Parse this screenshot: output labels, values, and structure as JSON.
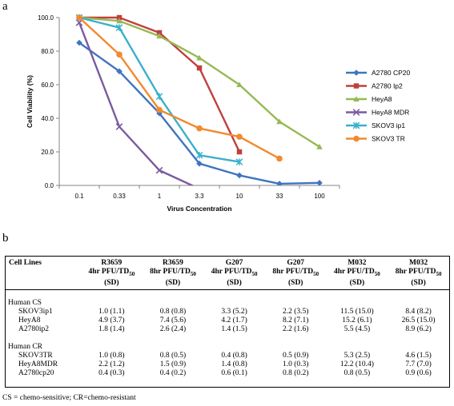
{
  "panel_a_label": "a",
  "panel_b_label": "b",
  "chart_data": {
    "type": "line",
    "x_scale": "categorical",
    "categories": [
      "0.1",
      "0.33",
      "1",
      "3.3",
      "10",
      "33",
      "100"
    ],
    "xlabel": "Virus Concentration",
    "ylabel": "Cell Viability (%)",
    "ylim": [
      0,
      100
    ],
    "yticks": [
      "0.0",
      "20.0",
      "40.0",
      "60.0",
      "80.0",
      "100.0"
    ],
    "grid": false,
    "legend_position": "right",
    "series": [
      {
        "name": "A2780 CP20",
        "color": "#3f74c1",
        "marker": "diamond",
        "values": [
          85,
          68,
          43,
          13,
          6,
          1,
          1.5
        ]
      },
      {
        "name": "A2780 Ip2",
        "color": "#c0403d",
        "marker": "square",
        "values": [
          100,
          100,
          91,
          70,
          20,
          null,
          null
        ]
      },
      {
        "name": "HeyA8",
        "color": "#97b954",
        "marker": "triangle",
        "values": [
          100,
          98,
          89,
          76,
          60,
          38,
          23
        ]
      },
      {
        "name": "HeyA8 MDR",
        "color": "#7a5aa0",
        "marker": "x",
        "values": [
          97,
          35,
          9,
          -2,
          null,
          null,
          null
        ]
      },
      {
        "name": "SKOV3 ip1",
        "color": "#3ab0cc",
        "marker": "star",
        "values": [
          100,
          94,
          53,
          18,
          14,
          null,
          null
        ]
      },
      {
        "name": "SKOV3 TR",
        "color": "#f18a2f",
        "marker": "circle",
        "values": [
          100,
          78,
          45,
          34,
          29,
          16,
          null
        ]
      }
    ]
  },
  "table": {
    "headers": [
      {
        "line1": "Cell Lines",
        "line2": "",
        "sub": "",
        "line3": ""
      },
      {
        "line1": "R3659",
        "line2": "4hr PFU/TD",
        "sub": "50",
        "line3": "(SD)"
      },
      {
        "line1": "R3659",
        "line2": "8hr PFU/TD",
        "sub": "50",
        "line3": "(SD)"
      },
      {
        "line1": "G207",
        "line2": "4hr PFU/TD",
        "sub": "50",
        "line3": "(SD)"
      },
      {
        "line1": "G207",
        "line2": "8hr PFU/TD",
        "sub": "50",
        "line3": "(SD)"
      },
      {
        "line1": "M032",
        "line2": "4hr PFU/TD",
        "sub": "50",
        "line3": "(SD)"
      },
      {
        "line1": "M032",
        "line2": "8hr PFU/TD",
        "sub": "50",
        "line3": "(SD)"
      }
    ],
    "groups": [
      {
        "label": "Human CS",
        "rows": [
          {
            "name": "SKOV3ip1",
            "cells": [
              "1.0 (1.1)",
              "0.8 (0.8)",
              "3.3 (5.2)",
              "2.2 (3.5)",
              "11.5 (15.0)",
              "8.4 (8.2)"
            ]
          },
          {
            "name": "HeyA8",
            "cells": [
              "4.9 (3.7)",
              "7.4 (5.6)",
              "4.2 (1.7)",
              "8.2 (7.1)",
              "15.2 (6.1)",
              "26.5 (15.0)"
            ]
          },
          {
            "name": "A2780ip2",
            "cells": [
              "1.8 (1.4)",
              "2.6 (2.4)",
              "1.4 (1.5)",
              "2.2 (1.6)",
              "5.5 (4.5)",
              "8.9 (6.2)"
            ]
          }
        ]
      },
      {
        "label": "Human CR",
        "rows": [
          {
            "name": "SKOV3TR",
            "cells": [
              "1.0 (0.8)",
              "0.8 (0.5)",
              "0.4 (0.8)",
              "0.5 (0.9)",
              "5.3 (2.5)",
              "4.6 (1.5)"
            ]
          },
          {
            "name": "HeyA8MDR",
            "cells": [
              "2.2 (1.2)",
              "1.5 (0.9)",
              "1.4 (0.8)",
              "1.0 (0.3)",
              "12.2 (10.4)",
              "7.7 (7.0)"
            ]
          },
          {
            "name": "A2780cp20",
            "cells": [
              "0.4 (0.3)",
              "0.4 (0.2)",
              "0.6 (0.1)",
              "0.8 (0.2)",
              "0.8 (0.5)",
              "0.9 (0.6)"
            ]
          }
        ]
      }
    ]
  },
  "footnote": "CS = chemo-sensitive; CR=chemo-resistant"
}
